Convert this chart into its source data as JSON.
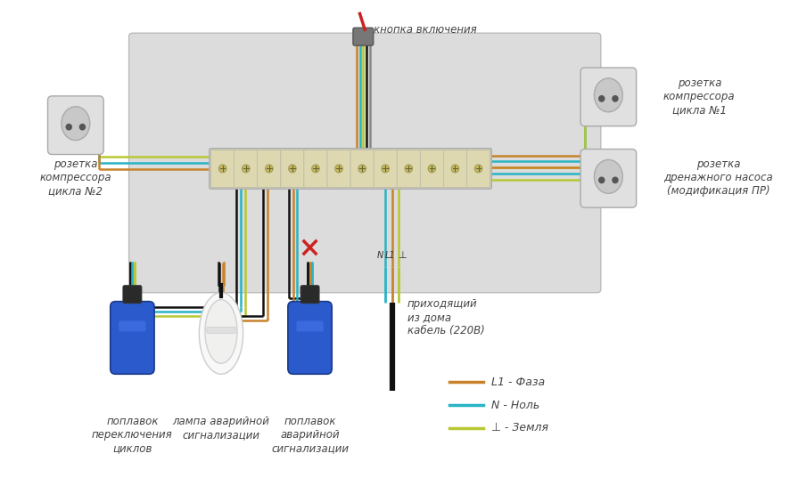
{
  "legend": [
    {
      "label": "L1 - Фаза",
      "color": "#c8832a"
    },
    {
      "label": "N - Ноль",
      "color": "#29b4c5"
    },
    {
      "label": "⊥ - Земля",
      "color": "#b8c832"
    }
  ],
  "labels": {
    "socket_left": "розетка\nкомпрессора\nцикла №2",
    "socket_top_right": "розетка\nкомпрессора\nцикла №1",
    "socket_bot_right": "розетка\nдренажного насоса\n(модификация ПР)",
    "button": "кнопка включения",
    "float1": "поплавок\nпереключения\nциклов",
    "lamp": "лампа аварийной\nсигнализации",
    "float2": "поплавок\nаварийной\nсигнализации",
    "cable": "приходящий\nиз дома\nкабель (220В)"
  }
}
